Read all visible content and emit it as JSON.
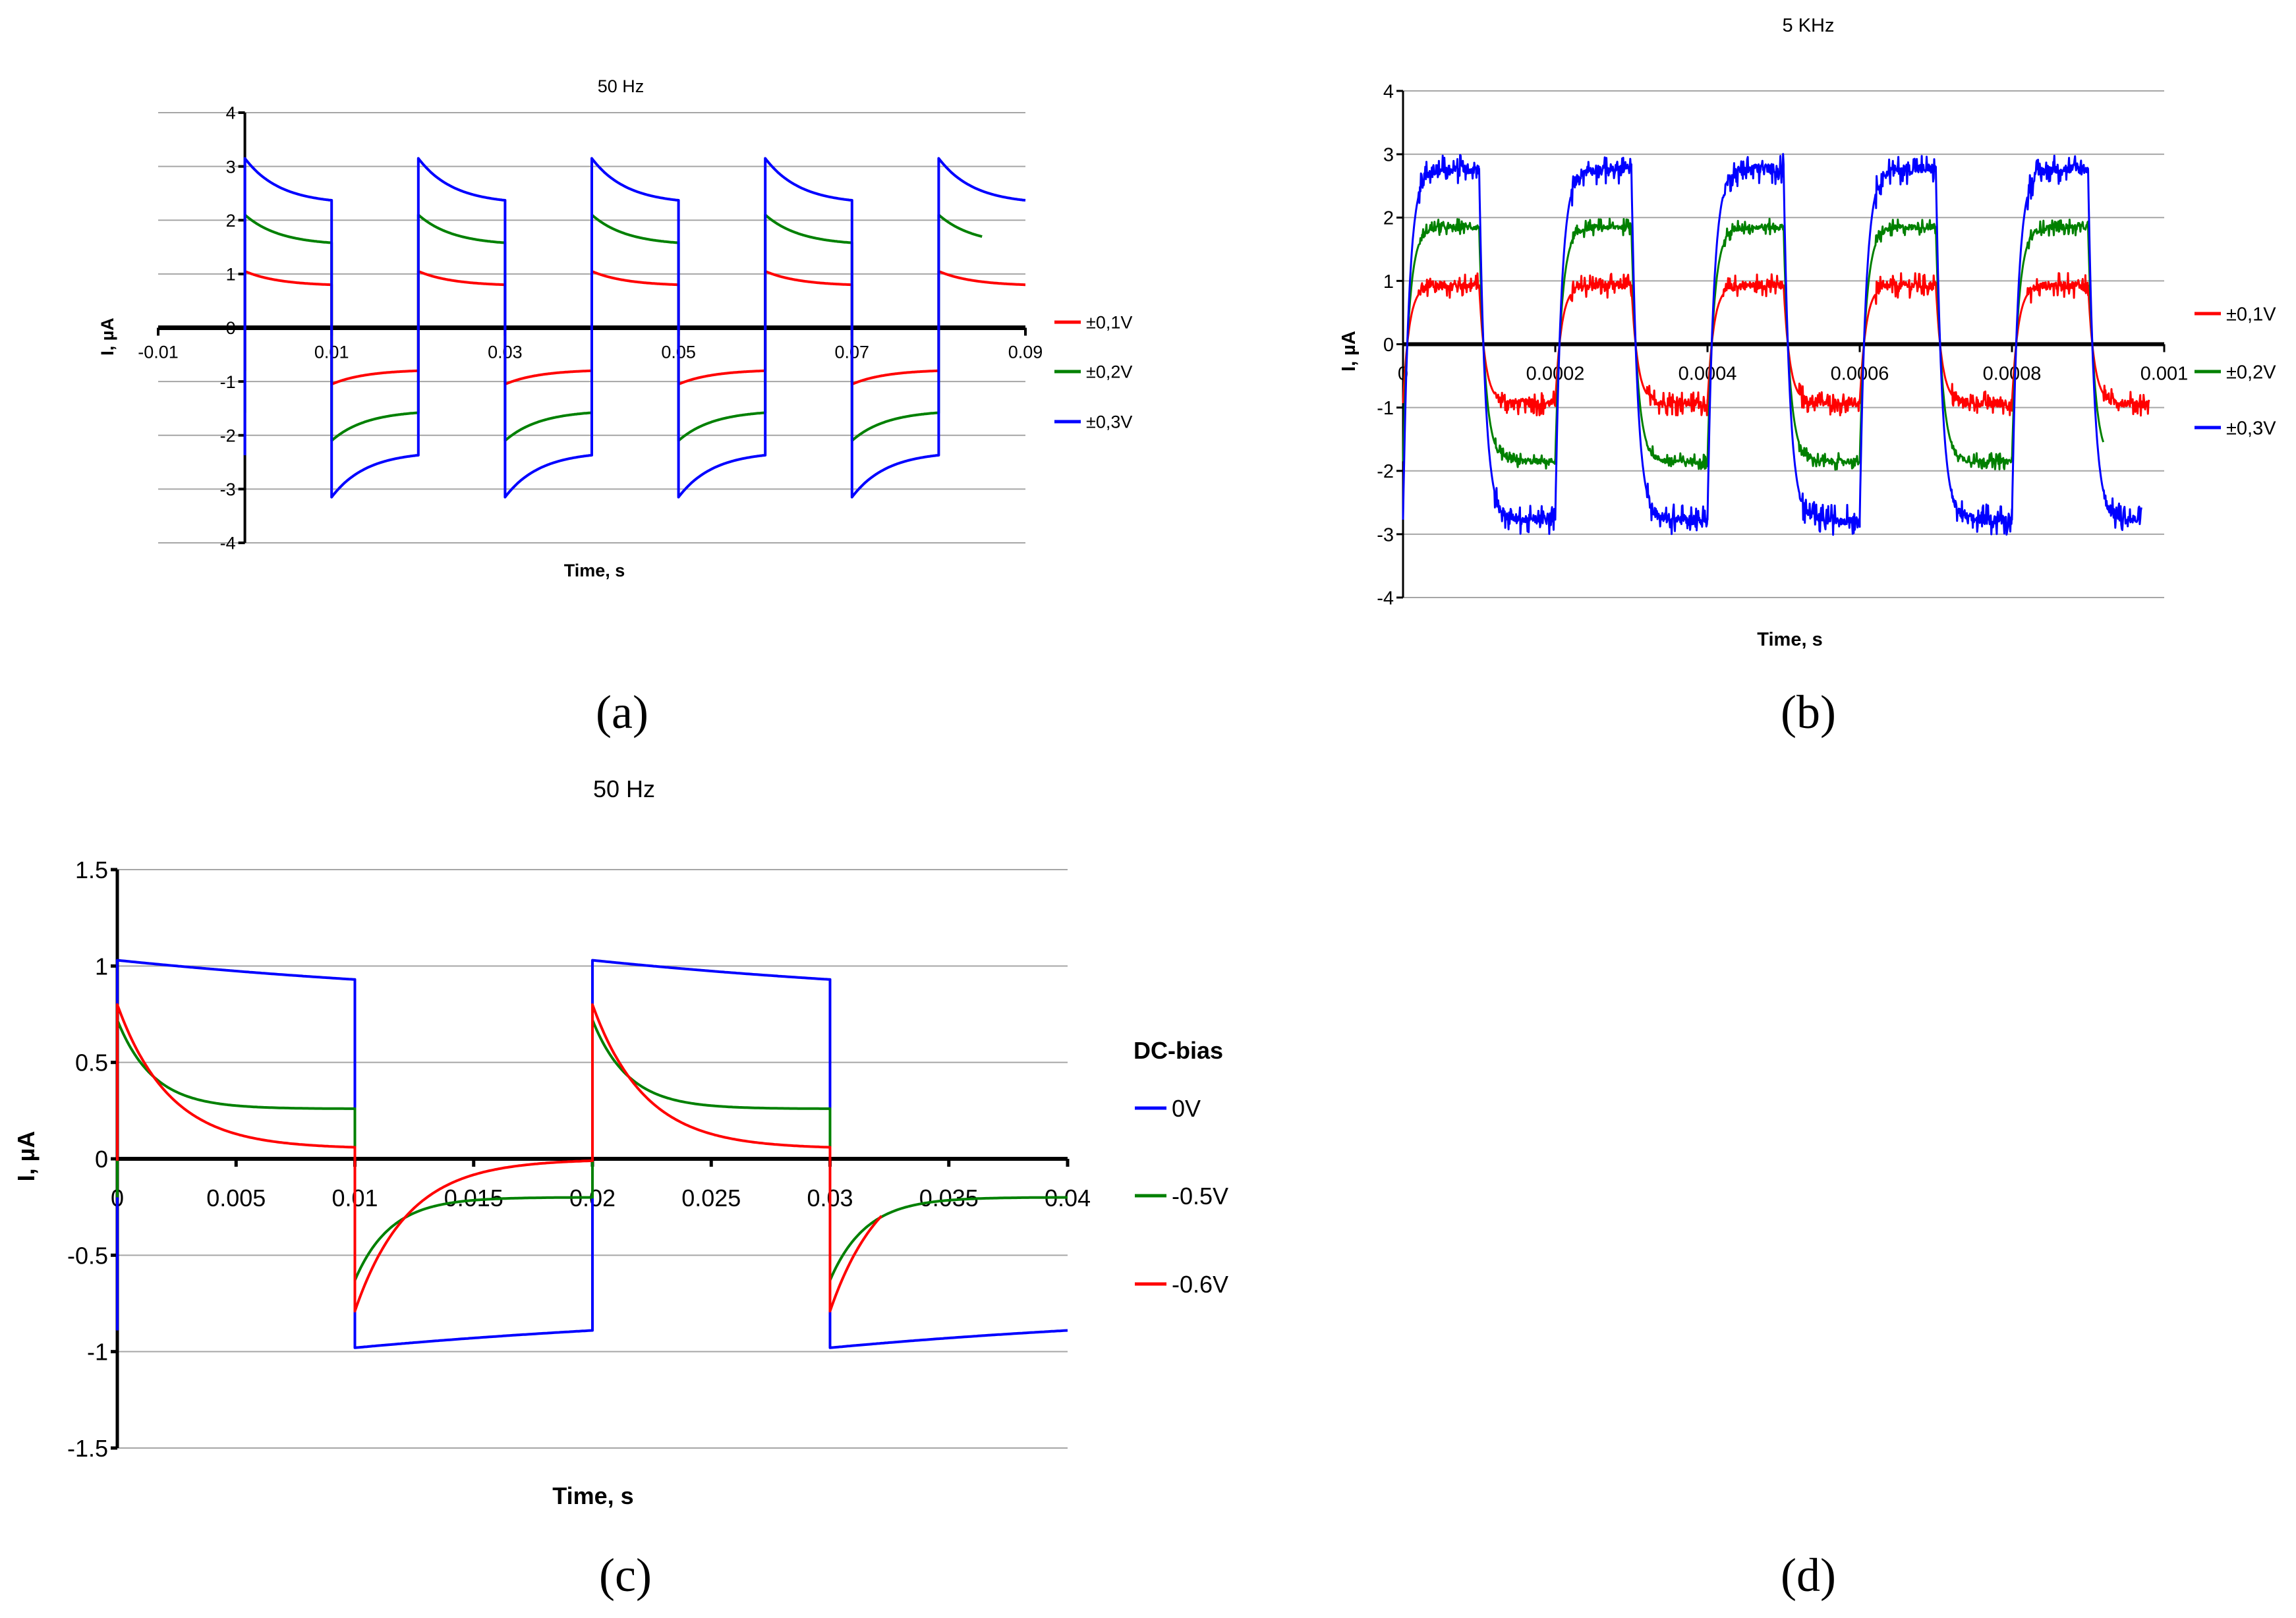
{
  "panel_labels": [
    "(a)",
    "(b)",
    "(c)",
    "(d)"
  ],
  "chart_data": [
    {
      "id": "a",
      "type": "line",
      "title": "50 Hz",
      "xlabel": "Time, s",
      "ylabel": "I, µA",
      "xlim": [
        -0.01,
        0.09
      ],
      "ylim": [
        -4,
        4
      ],
      "x_ticks": [
        "-0.01",
        "0.01",
        "0.03",
        "0.05",
        "0.07",
        "0.09"
      ],
      "x_tick_values": [
        -0.01,
        0.01,
        0.03,
        0.05,
        0.07,
        0.09
      ],
      "y_ticks": [
        4,
        3,
        2,
        1,
        0,
        -1,
        -2,
        -3,
        -4
      ],
      "grid": true,
      "legend": "right",
      "waveform": "square",
      "half_period": 0.01,
      "series": [
        {
          "name": "±0,1V",
          "color": "#ff0000",
          "pos_peak": 1.05,
          "pos_end": 0.8,
          "neg_peak": -1.05,
          "neg_end": -0.8,
          "tau": 0.004,
          "t_end": 0.09
        },
        {
          "name": "±0,2V",
          "color": "#008000",
          "pos_peak": 2.1,
          "pos_end": 1.58,
          "neg_peak": -2.1,
          "neg_end": -1.58,
          "tau": 0.004,
          "t_end": 0.085
        },
        {
          "name": "±0,3V",
          "color": "#0000ff",
          "pos_peak": 3.15,
          "pos_end": 2.37,
          "neg_peak": -3.15,
          "neg_end": -2.37,
          "tau": 0.004,
          "t_end": 0.09
        }
      ]
    },
    {
      "id": "b",
      "type": "line",
      "title": "5 KHz",
      "xlabel": "Time, s",
      "ylabel": "I, µA",
      "xlim": [
        0,
        0.001
      ],
      "ylim": [
        -4,
        4
      ],
      "x_ticks": [
        "0",
        "0.0002",
        "0.0004",
        "0.0006",
        "0.0008",
        "0.001"
      ],
      "x_tick_values": [
        0,
        0.0002,
        0.0004,
        0.0006,
        0.0008,
        0.001
      ],
      "y_ticks": [
        4,
        3,
        2,
        1,
        0,
        -1,
        -2,
        -3,
        -4
      ],
      "grid": true,
      "legend": "right",
      "waveform": "square",
      "half_period": 0.0001,
      "series": [
        {
          "name": "±0,1V",
          "color": "#ff0000",
          "plateau": 0.93,
          "tau": 8e-06,
          "noise": 0.18,
          "t_end": 0.00098
        },
        {
          "name": "±0,2V",
          "color": "#008000",
          "plateau": 1.85,
          "tau": 8e-06,
          "noise": 0.12,
          "t_end": 0.00092
        },
        {
          "name": "±0,3V",
          "color": "#0000ff",
          "plateau": 2.77,
          "tau": 8e-06,
          "noise": 0.22,
          "t_end": 0.00097
        }
      ]
    },
    {
      "id": "c",
      "type": "line",
      "title": "50 Hz",
      "xlabel": "Time, s",
      "ylabel": "I, µA",
      "xlim": [
        0,
        0.04
      ],
      "ylim": [
        -1.5,
        1.5
      ],
      "x_ticks": [
        "0",
        "0.005",
        "0.01",
        "0.015",
        "0.02",
        "0.025",
        "0.03",
        "0.035",
        "0.04"
      ],
      "x_tick_values": [
        0,
        0.005,
        0.01,
        0.015,
        0.02,
        0.025,
        0.03,
        0.035,
        0.04
      ],
      "y_ticks": [
        "1.5",
        "1",
        "0.5",
        "0",
        "-0.5",
        "-1",
        "-1.5"
      ],
      "y_tick_values": [
        1.5,
        1,
        0.5,
        0,
        -0.5,
        -1,
        -1.5
      ],
      "grid": true,
      "legend": "right",
      "legend_title": "DC-bias",
      "waveform": "square",
      "half_period": 0.01,
      "series": [
        {
          "name": "0V",
          "color": "#0000ff",
          "pos_peak": 1.03,
          "pos_end": 0.93,
          "neg_peak": -0.98,
          "neg_end": -0.89,
          "tau": 0.02,
          "t_end": 0.04
        },
        {
          "name": "-0.5V",
          "color": "#008000",
          "pos_peak": 0.72,
          "pos_end": 0.26,
          "neg_peak": -0.63,
          "neg_end": -0.2,
          "tau": 0.0015,
          "t_end": 0.04
        },
        {
          "name": "-0.6V",
          "color": "#ff0000",
          "pos_peak": 0.8,
          "pos_end": 0.06,
          "neg_peak": -0.79,
          "neg_end": -0.01,
          "tau": 0.0022,
          "t_end": 0.0322
        }
      ]
    }
  ]
}
